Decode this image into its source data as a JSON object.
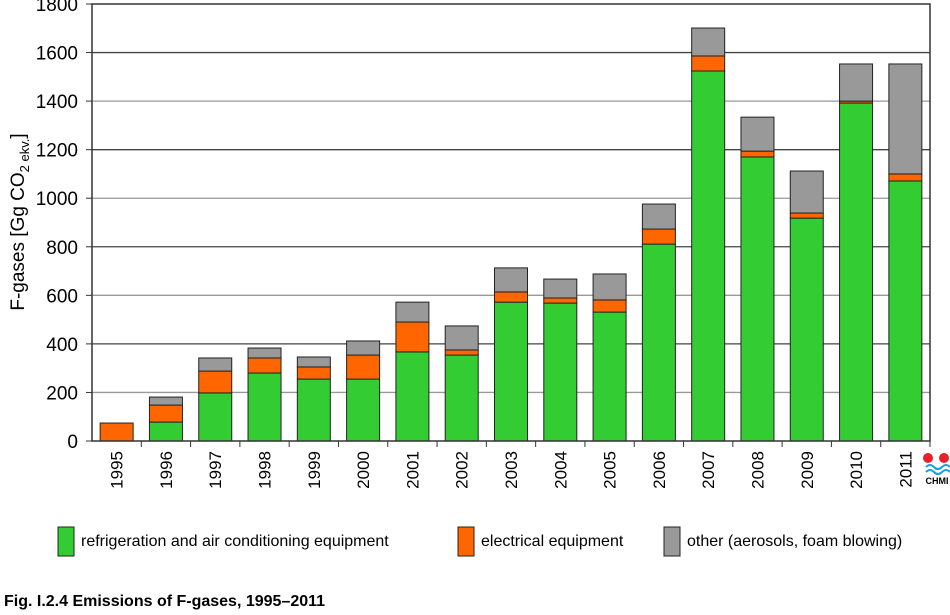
{
  "chart_data": {
    "type": "bar",
    "stacked": true,
    "title": "Fig. I.2.4  Emissions of F-gases, 1995–2011",
    "ylabel": "F-gases [Gg CO2 ekv.]",
    "ylabel_parts": {
      "main": "F-gases [Gg CO",
      "sub": "2 ekv.",
      "end": "]"
    },
    "xlabel": "",
    "ylim": [
      0,
      1800
    ],
    "yticks": [
      0,
      200,
      400,
      600,
      800,
      1000,
      1200,
      1400,
      1600,
      1800
    ],
    "grid": true,
    "legend_position": "bottom",
    "categories": [
      "1995",
      "1996",
      "1997",
      "1998",
      "1999",
      "2000",
      "2001",
      "2002",
      "2003",
      "2004",
      "2005",
      "2006",
      "2007",
      "2008",
      "2009",
      "2010",
      "2011"
    ],
    "series": [
      {
        "name": "refrigeration and air conditioning equipment",
        "color": "#33cc33",
        "values": [
          0,
          78,
          198,
          280,
          255,
          255,
          367,
          354,
          572,
          568,
          531,
          811,
          1524,
          1170,
          918,
          1392,
          1071
        ]
      },
      {
        "name": "electrical equipment",
        "color": "#ff6600",
        "values": [
          74,
          70,
          90,
          62,
          50,
          99,
          123,
          21,
          42,
          21,
          50,
          62,
          62,
          24,
          21,
          8,
          29
        ]
      },
      {
        "name": "other (aerosols, foam blowing)",
        "color": "#999999",
        "values": [
          0,
          33,
          54,
          41,
          41,
          58,
          82,
          99,
          99,
          78,
          107,
          103,
          115,
          140,
          173,
          153,
          453
        ]
      }
    ]
  },
  "logo": {
    "text": "CHMI"
  }
}
